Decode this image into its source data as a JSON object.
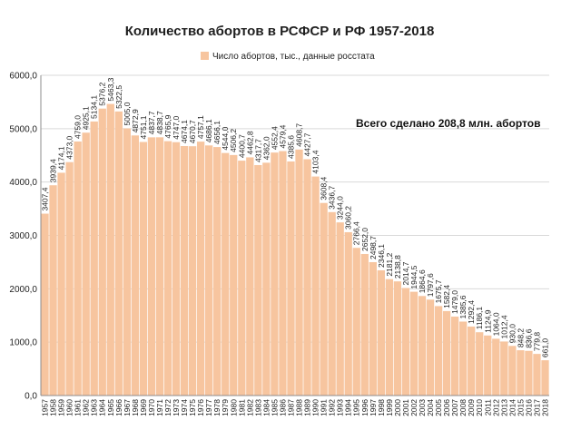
{
  "chart_data": {
    "type": "bar",
    "title": "Количество абортов  в РСФСР и РФ 1957-2018",
    "legend": {
      "label": "Число абортов, тыс., данные росстата",
      "color": "#F7C59F",
      "placement": "top"
    },
    "annotation": "Всего сделано 208,8 млн.  абортов",
    "ylim": [
      0,
      6000
    ],
    "yticks": [
      "0,0",
      "1000,0",
      "2000,0",
      "3000,0",
      "4000,0",
      "5000,0",
      "6000,0"
    ],
    "grid": true,
    "categories": [
      "1957",
      "1958",
      "1959",
      "1960",
      "1961",
      "1962",
      "1963",
      "1964",
      "1965",
      "1966",
      "1967",
      "1968",
      "1969",
      "1970",
      "1971",
      "1972",
      "1973",
      "1974",
      "1975",
      "1976",
      "1977",
      "1978",
      "1979",
      "1980",
      "1981",
      "1982",
      "1983",
      "1984",
      "1985",
      "1986",
      "1987",
      "1988",
      "1989",
      "1990",
      "1991",
      "1992",
      "1993",
      "1994",
      "1995",
      "1996",
      "1997",
      "1998",
      "1999",
      "2000",
      "2001",
      "2002",
      "2003",
      "2004",
      "2005",
      "2006",
      "2007",
      "2008",
      "2009",
      "2010",
      "2011",
      "2012",
      "2013",
      "2014",
      "2015",
      "2016",
      "2017",
      "2018"
    ],
    "values": [
      3407.4,
      3939.4,
      4174.1,
      4373.0,
      4759.0,
      4925.1,
      5134.1,
      5376.2,
      5463.3,
      5322.5,
      5005.0,
      4872.9,
      4751.1,
      4837.7,
      4838.7,
      4765.9,
      4747.0,
      4674.1,
      4670.7,
      4757.1,
      4686.1,
      4656.1,
      4544.0,
      4506.2,
      4400.7,
      4462.8,
      4317.7,
      4362.0,
      4552.4,
      4579.4,
      4385.6,
      4608.7,
      4427.7,
      4103.4,
      3608.4,
      3436.7,
      3244.0,
      3060.2,
      2766.4,
      2652.0,
      2498.7,
      2346.1,
      2181.2,
      2138.8,
      2014.7,
      1944.5,
      1864.6,
      1797.6,
      1675.7,
      1582.4,
      1479.0,
      1385.6,
      1292.4,
      1186.1,
      1124.9,
      1064.0,
      1012.4,
      930.0,
      848.2,
      836.6,
      779.8,
      661.0
    ],
    "labels": [
      "3407,4",
      "3939,4",
      "4174,1",
      "4373,0",
      "4759,0",
      "4925,1",
      "5134,1",
      "5376,2",
      "5463,3",
      "5322,5",
      "5005,0",
      "4872,9",
      "4751,1",
      "4837,7",
      "4838,7",
      "4765,9",
      "4747,0",
      "4674,1",
      "4670,7",
      "4757,1",
      "4686,1",
      "4656,1",
      "4544,0",
      "4506,2",
      "4400,7",
      "4462,8",
      "4317,7",
      "4362,0",
      "4552,4",
      "4579,4",
      "4385,6",
      "4608,7",
      "4427,7",
      "4103,4",
      "3608,4",
      "3436,7",
      "3244,0",
      "3060,2",
      "2766,4",
      "2652,0",
      "2498,7",
      "2346,1",
      "2181,2",
      "2138,8",
      "2014,7",
      "1944,5",
      "1864,6",
      "1797,6",
      "1675,7",
      "1582,4",
      "1479,0",
      "1385,6",
      "1292,4",
      "1186,1",
      "1124,9",
      "1064,0",
      "1012,4",
      "930,0",
      "848,2",
      "836,6",
      "779,8",
      "661,0"
    ]
  }
}
